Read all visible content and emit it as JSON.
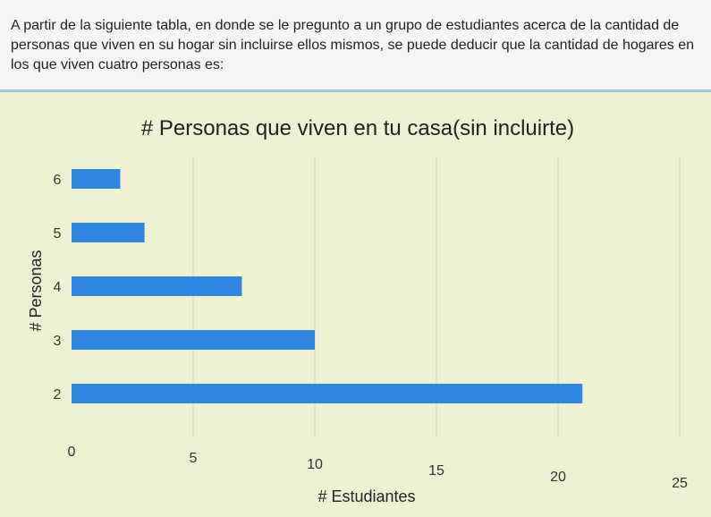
{
  "question": {
    "text": "A partir de la siguiente tabla, en donde se le pregunto a un grupo de estudiantes acerca de la cantidad de personas que viven en su hogar sin incluirse ellos mismos, se puede deducir que la cantidad de hogares en los que viven cuatro personas es:"
  },
  "chart_data": {
    "type": "bar",
    "orientation": "horizontal",
    "title": "# Personas que viven en tu casa(sin incluirte)",
    "xlabel": "# Estudiantes",
    "ylabel": "# Personas",
    "categories": [
      "2",
      "3",
      "4",
      "5",
      "6"
    ],
    "values": [
      21,
      10,
      7,
      3,
      2
    ],
    "xlim": [
      0,
      25
    ],
    "xticks": [
      "0",
      "5",
      "10",
      "15",
      "20",
      "25"
    ],
    "bar_color": "#2f86e0",
    "grid": "vertical",
    "legend": "none"
  }
}
